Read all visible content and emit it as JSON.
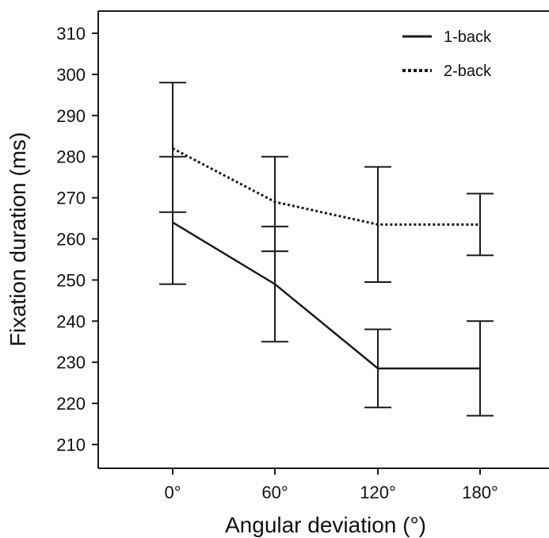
{
  "chart_data": {
    "type": "line",
    "title": "",
    "xlabel": "Angular deviation (°)",
    "ylabel": "Fixation duration (ms)",
    "categories": [
      "0°",
      "60°",
      "120°",
      "180°"
    ],
    "ylim": [
      203,
      592
    ],
    "ylim_note": "",
    "yticks": [
      210,
      220,
      230,
      240,
      250,
      260,
      270,
      280,
      290,
      300,
      310
    ],
    "grid": false,
    "legend_position": "top-right",
    "series": [
      {
        "name": "1-back",
        "style": "solid",
        "values": [
          264,
          249,
          228.5,
          228.5
        ],
        "err_low": [
          249,
          235,
          219,
          217
        ],
        "err_high": [
          280,
          263,
          238,
          240
        ]
      },
      {
        "name": "2-back",
        "style": "dotted",
        "values": [
          282,
          269,
          263.5,
          263.5
        ],
        "err_low": [
          266.5,
          257,
          249.5,
          256
        ],
        "err_high": [
          298,
          280,
          277.5,
          271
        ]
      }
    ],
    "colors": {
      "line": "#1a1a1a",
      "axis": "#1a1a1a"
    }
  }
}
